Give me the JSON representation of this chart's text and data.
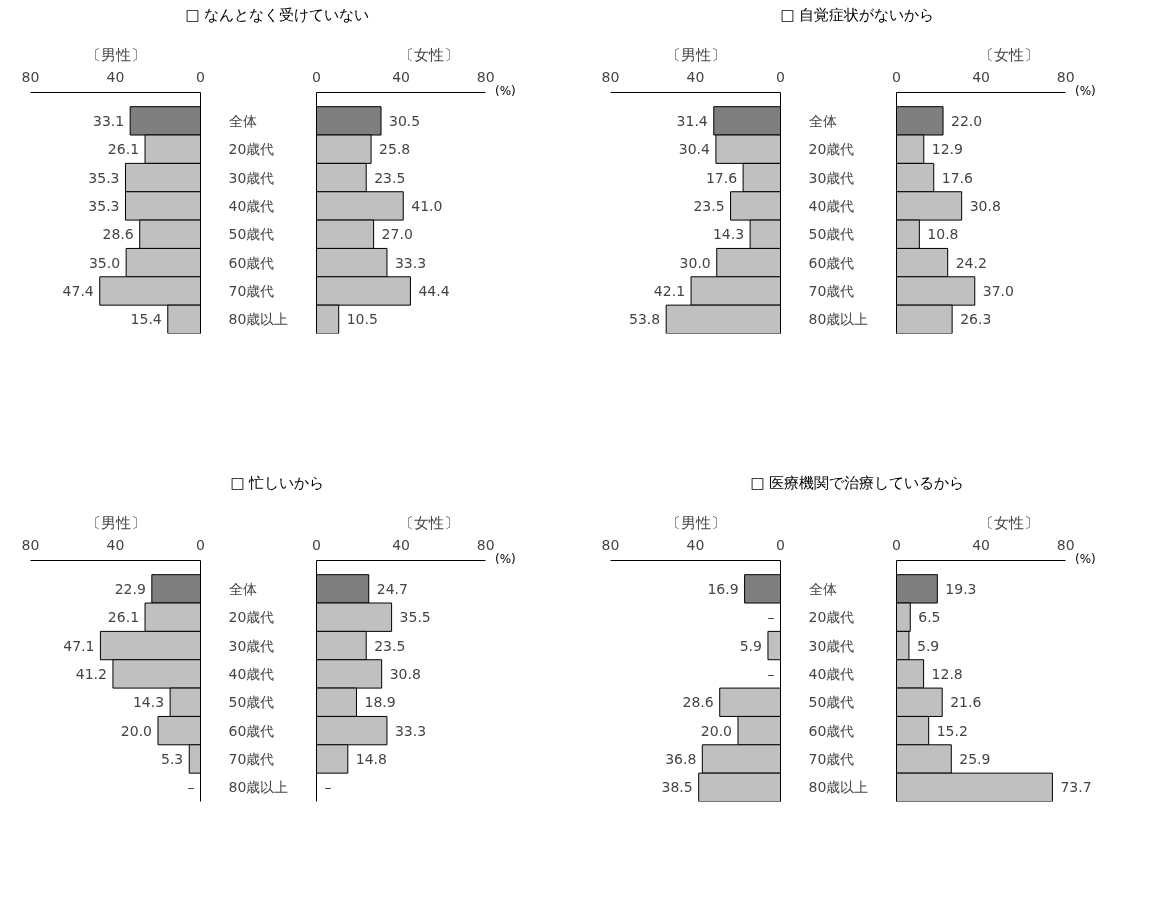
{
  "chart_data": [
    {
      "type": "bar",
      "orientation": "horizontal",
      "title": "□ なんとなく受けていない",
      "subtitle": "〔男性〕",
      "categories": [
        "全体",
        "20歳代",
        "30歳代",
        "40歳代",
        "50歳代",
        "60歳代",
        "70歳代",
        "80歳以上"
      ],
      "values": [
        33.1,
        26.1,
        35.3,
        35.3,
        28.6,
        35.0,
        47.4,
        15.4
      ],
      "value_labels": [
        "33.1",
        "26.1",
        "35.3",
        "35.3",
        "28.6",
        "35.0",
        "47.4",
        "15.4"
      ],
      "colors": [
        "#7f7f7f",
        "#c0c0c0",
        "#c0c0c0",
        "#c0c0c0",
        "#c0c0c0",
        "#c0c0c0",
        "#c0c0c0",
        "#c0c0c0"
      ],
      "xlim": [
        80,
        0
      ],
      "xticks": [
        80,
        40,
        0
      ]
    },
    {
      "type": "bar",
      "orientation": "horizontal",
      "subtitle": "〔女性〕",
      "annotations": [
        "(%)"
      ],
      "categories": [
        null,
        null,
        null,
        null,
        null,
        null,
        null,
        null
      ],
      "values": [
        30.5,
        25.8,
        23.5,
        41.0,
        27.0,
        33.3,
        44.4,
        10.5
      ],
      "value_labels": [
        "30.5",
        "25.8",
        "23.5",
        "41.0",
        "27.0",
        "33.3",
        "44.4",
        "10.5"
      ],
      "colors": [
        "#7f7f7f",
        "#c0c0c0",
        "#c0c0c0",
        "#c0c0c0",
        "#c0c0c0",
        "#c0c0c0",
        "#c0c0c0",
        "#c0c0c0"
      ],
      "xlim": [
        0,
        80
      ],
      "xticks": [
        0,
        40,
        80
      ]
    },
    {
      "type": "bar",
      "orientation": "horizontal",
      "title": "□ 自覚症状がないから",
      "subtitle": "〔男性〕",
      "categories": [
        "全体",
        "20歳代",
        "30歳代",
        "40歳代",
        "50歳代",
        "60歳代",
        "70歳代",
        "80歳以上"
      ],
      "values": [
        31.4,
        30.4,
        17.6,
        23.5,
        14.3,
        30.0,
        42.1,
        53.8
      ],
      "value_labels": [
        "31.4",
        "30.4",
        "17.6",
        "23.5",
        "14.3",
        "30.0",
        "42.1",
        "53.8"
      ],
      "colors": [
        "#7f7f7f",
        "#c0c0c0",
        "#c0c0c0",
        "#c0c0c0",
        "#c0c0c0",
        "#c0c0c0",
        "#c0c0c0",
        "#c0c0c0"
      ],
      "xlim": [
        80,
        0
      ],
      "xticks": [
        80,
        40,
        0
      ]
    },
    {
      "type": "bar",
      "orientation": "horizontal",
      "subtitle": "〔女性〕",
      "annotations": [
        "(%)"
      ],
      "categories": [
        null,
        null,
        null,
        null,
        null,
        null,
        null,
        null
      ],
      "values": [
        22.0,
        12.9,
        17.6,
        30.8,
        10.8,
        24.2,
        37.0,
        26.3
      ],
      "value_labels": [
        "22.0",
        "12.9",
        "17.6",
        "30.8",
        "10.8",
        "24.2",
        "37.0",
        "26.3"
      ],
      "colors": [
        "#7f7f7f",
        "#c0c0c0",
        "#c0c0c0",
        "#c0c0c0",
        "#c0c0c0",
        "#c0c0c0",
        "#c0c0c0",
        "#c0c0c0"
      ],
      "xlim": [
        0,
        80
      ],
      "xticks": [
        0,
        40,
        80
      ]
    },
    {
      "type": "bar",
      "orientation": "horizontal",
      "title": "□ 忙しいから",
      "subtitle": "〔男性〕",
      "categories": [
        "全体",
        "20歳代",
        "30歳代",
        "40歳代",
        "50歳代",
        "60歳代",
        "70歳代",
        "80歳以上"
      ],
      "values": [
        22.9,
        26.1,
        47.1,
        41.2,
        14.3,
        20.0,
        5.3,
        null
      ],
      "value_labels": [
        "22.9",
        "26.1",
        "47.1",
        "41.2",
        "14.3",
        "20.0",
        "5.3",
        "–"
      ],
      "colors": [
        "#7f7f7f",
        "#c0c0c0",
        "#c0c0c0",
        "#c0c0c0",
        "#c0c0c0",
        "#c0c0c0",
        "#c0c0c0",
        "#c0c0c0"
      ],
      "xlim": [
        80,
        0
      ],
      "xticks": [
        80,
        40,
        0
      ]
    },
    {
      "type": "bar",
      "orientation": "horizontal",
      "subtitle": "〔女性〕",
      "annotations": [
        "(%)"
      ],
      "categories": [
        null,
        null,
        null,
        null,
        null,
        null,
        null,
        null
      ],
      "values": [
        24.7,
        35.5,
        23.5,
        30.8,
        18.9,
        33.3,
        14.8,
        null
      ],
      "value_labels": [
        "24.7",
        "35.5",
        "23.5",
        "30.8",
        "18.9",
        "33.3",
        "14.8",
        "–"
      ],
      "colors": [
        "#7f7f7f",
        "#c0c0c0",
        "#c0c0c0",
        "#c0c0c0",
        "#c0c0c0",
        "#c0c0c0",
        "#c0c0c0",
        "#c0c0c0"
      ],
      "xlim": [
        0,
        80
      ],
      "xticks": [
        0,
        40,
        80
      ]
    },
    {
      "type": "bar",
      "orientation": "horizontal",
      "title": "□ 医療機関で治療しているから",
      "subtitle": "〔男性〕",
      "categories": [
        "全体",
        "20歳代",
        "30歳代",
        "40歳代",
        "50歳代",
        "60歳代",
        "70歳代",
        "80歳以上"
      ],
      "values": [
        16.9,
        null,
        5.9,
        null,
        28.6,
        20.0,
        36.8,
        38.5
      ],
      "value_labels": [
        "16.9",
        "–",
        "5.9",
        "–",
        "28.6",
        "20.0",
        "36.8",
        "38.5"
      ],
      "colors": [
        "#7f7f7f",
        "#c0c0c0",
        "#c0c0c0",
        "#c0c0c0",
        "#c0c0c0",
        "#c0c0c0",
        "#c0c0c0",
        "#c0c0c0"
      ],
      "xlim": [
        80,
        0
      ],
      "xticks": [
        80,
        40,
        0
      ]
    },
    {
      "type": "bar",
      "orientation": "horizontal",
      "subtitle": "〔女性〕",
      "annotations": [
        "(%)"
      ],
      "categories": [
        null,
        null,
        null,
        null,
        null,
        null,
        null,
        null
      ],
      "values": [
        19.3,
        6.5,
        5.9,
        12.8,
        21.6,
        15.2,
        25.9,
        73.7
      ],
      "value_labels": [
        "19.3",
        "6.5",
        "5.9",
        "12.8",
        "21.6",
        "15.2",
        "25.9",
        "73.7"
      ],
      "colors": [
        "#7f7f7f",
        "#c0c0c0",
        "#c0c0c0",
        "#c0c0c0",
        "#c0c0c0",
        "#c0c0c0",
        "#c0c0c0",
        "#c0c0c0"
      ],
      "xlim": [
        0,
        80
      ],
      "xticks": [
        0,
        40,
        80
      ]
    }
  ]
}
